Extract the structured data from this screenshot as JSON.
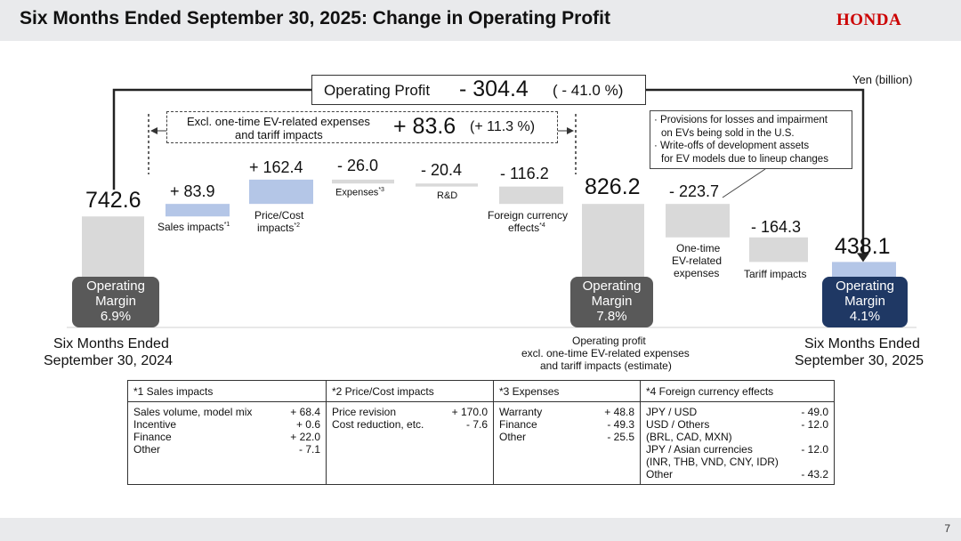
{
  "header": {
    "title": "Six Months Ended September 30, 2025: Change in Operating Profit",
    "logo": "HONDA"
  },
  "unit": "Yen (billion)",
  "operating_profit": {
    "label": "Operating Profit",
    "value": "- 304.4",
    "pct": "( - 41.0 %)"
  },
  "excl": {
    "label_line1": "Excl. one-time EV-related expenses",
    "label_line2": "and tariff impacts",
    "value": "+ 83.6",
    "pct": "(+ 11.3 %)"
  },
  "note_box": {
    "lines": [
      "· Provisions for losses and impairment",
      "  on EVs being sold in the U.S.",
      "· Write-offs of development assets",
      "  for EV models due to lineup changes"
    ]
  },
  "chart_data": {
    "type": "bar",
    "subtype": "waterfall",
    "categories": [
      "Six Months Ended September 30, 2024",
      "Sales impacts*1",
      "Price/Cost impacts*2",
      "Expenses*3",
      "R&D",
      "Foreign currency effects*4",
      "Operating profit excl. one-time EV-related expenses and tariff impacts (estimate)",
      "One-time EV-related expenses",
      "Tariff impacts",
      "Six Months Ended September 30, 2025"
    ],
    "values": [
      742.6,
      83.9,
      162.4,
      -26.0,
      -20.4,
      -116.2,
      826.2,
      -223.7,
      -164.3,
      438.1
    ]
  },
  "bars": [
    {
      "value": "742.6",
      "label1": "Six Months Ended",
      "label2": "September 30, 2024"
    },
    {
      "value": "+ 83.9",
      "label1": "Sales impacts",
      "sup": "*1"
    },
    {
      "value": "+ 162.4",
      "label1": "Price/Cost",
      "label2": "impacts",
      "sup": "*2"
    },
    {
      "value": "- 26.0",
      "label1": "Expenses",
      "sup": "*3"
    },
    {
      "value": "- 20.4",
      "label1": "R&D"
    },
    {
      "value": "- 116.2",
      "label1": "Foreign currency",
      "label2": "effects",
      "sup": "*4"
    },
    {
      "value": "826.2",
      "label1": "Operating profit",
      "label2": "excl. one-time EV-related  expenses",
      "label3": "and tariff impacts (estimate)"
    },
    {
      "value": "- 223.7",
      "label1": "One-time",
      "label2": "EV-related",
      "label3": "expenses"
    },
    {
      "value": "- 164.3",
      "label1": "Tariff impacts"
    },
    {
      "value": "438.1",
      "label1": "Six Months Ended",
      "label2": "September 30, 2025"
    }
  ],
  "margins": [
    {
      "l1": "Operating",
      "l2": "Margin",
      "l3": "6.9%"
    },
    {
      "l1": "Operating",
      "l2": "Margin",
      "l3": "7.8%"
    },
    {
      "l1": "Operating",
      "l2": "Margin",
      "l3": "4.1%"
    }
  ],
  "colors": {
    "gray": "#d9d9d9",
    "blue": "#b4c6e7",
    "dark_gray": "#595959",
    "navy": "#1f3864",
    "honda_red": "#cc0000"
  },
  "table": {
    "headers": [
      "*1 Sales impacts",
      "*2 Price/Cost impacts",
      "*3 Expenses",
      "*4 Foreign currency effects"
    ],
    "sales": [
      [
        "Sales volume, model mix",
        "+ 68.4"
      ],
      [
        "Incentive",
        "+ 0.6"
      ],
      [
        "Finance",
        "+ 22.0"
      ],
      [
        "Other",
        "- 7.1"
      ]
    ],
    "price": [
      [
        "Price revision",
        "+ 170.0"
      ],
      [
        "Cost reduction, etc.",
        "- 7.6"
      ]
    ],
    "expenses": [
      [
        "Warranty",
        "+ 48.8"
      ],
      [
        "Finance",
        "- 49.3"
      ],
      [
        "Other",
        "- 25.5"
      ]
    ],
    "fx": [
      [
        "JPY / USD",
        "- 49.0"
      ],
      [
        "USD / Others",
        "- 12.0"
      ],
      [
        "(BRL, CAD, MXN)",
        ""
      ],
      [
        "JPY / Asian currencies",
        "- 12.0"
      ],
      [
        "(INR, THB, VND, CNY, IDR)",
        ""
      ],
      [
        "Other",
        "- 43.2"
      ]
    ]
  },
  "page": "7"
}
